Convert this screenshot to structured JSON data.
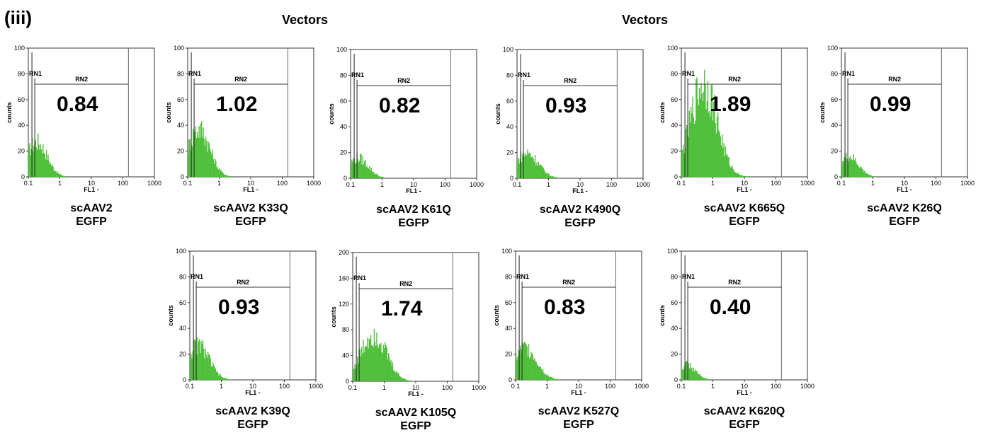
{
  "panel_label": "(iii)",
  "vectors_labels": [
    "Vectors",
    "Vectors"
  ],
  "chart_data": [
    {
      "type": "histogram",
      "ylabel": "counts",
      "xlabel": "FL1 -",
      "x_scale": "log",
      "xlim": [
        0.1,
        1000
      ],
      "ylim": [
        0,
        100
      ],
      "y_ticks": [
        "0",
        "20",
        "40",
        "60",
        "80",
        "100"
      ],
      "x_ticks": [
        "0.1",
        "1",
        "10",
        "100",
        "1000"
      ],
      "gate1": "RN1",
      "gate2": "RN2",
      "value": "0.84",
      "caption": [
        "scAAV2",
        "EGFP"
      ],
      "peak_x": 0.18,
      "peak_y": 35,
      "width": 0.32
    },
    {
      "type": "histogram",
      "ylabel": "counts",
      "xlabel": "FL1 -",
      "x_scale": "log",
      "xlim": [
        0.1,
        1000
      ],
      "ylim": [
        0,
        100
      ],
      "y_ticks": [
        "0",
        "20",
        "40",
        "60",
        "80",
        "100"
      ],
      "x_ticks": [
        "0.1",
        "1",
        "10",
        "100",
        "1000"
      ],
      "gate1": "RN1",
      "gate2": "RN2",
      "value": "1.02",
      "caption": [
        "scAAV2 K33Q",
        "EGFP"
      ],
      "peak_x": 0.22,
      "peak_y": 48,
      "width": 0.34
    },
    {
      "type": "histogram",
      "ylabel": "counts",
      "xlabel": "FL1 -",
      "x_scale": "log",
      "xlim": [
        0.1,
        1000
      ],
      "ylim": [
        0,
        100
      ],
      "y_ticks": [
        "0",
        "20",
        "40",
        "60",
        "80",
        "100"
      ],
      "x_ticks": [
        "0.1",
        "1",
        "10",
        "100",
        "1000"
      ],
      "gate1": "RN1",
      "gate2": "RN2",
      "value": "0.82",
      "caption": [
        "scAAV2 K61Q",
        "EGFP"
      ],
      "peak_x": 0.17,
      "peak_y": 20,
      "width": 0.32
    },
    {
      "type": "histogram",
      "ylabel": "counts",
      "xlabel": "FL1 -",
      "x_scale": "log",
      "xlim": [
        0.1,
        1000
      ],
      "ylim": [
        0,
        100
      ],
      "y_ticks": [
        "0",
        "20",
        "40",
        "60",
        "80",
        "100"
      ],
      "x_ticks": [
        "0.1",
        "1",
        "10",
        "100",
        "1000"
      ],
      "gate1": "RN1",
      "gate2": "RN2",
      "value": "0.93",
      "caption": [
        "scAAV2 K490Q",
        "EGFP"
      ],
      "peak_x": 0.2,
      "peak_y": 25,
      "width": 0.36
    },
    {
      "type": "histogram",
      "ylabel": "counts",
      "xlabel": "FL1 -",
      "x_scale": "log",
      "xlim": [
        0.1,
        1000
      ],
      "ylim": [
        0,
        100
      ],
      "y_ticks": [
        "0",
        "20",
        "40",
        "60",
        "80",
        "100"
      ],
      "x_ticks": [
        "0.1",
        "1",
        "10",
        "100",
        "1000"
      ],
      "gate1": "RN1",
      "gate2": "RN2",
      "value": "1.89",
      "caption": [
        "scAAV2 K665Q",
        "EGFP"
      ],
      "peak_x": 0.5,
      "peak_y": 93,
      "width": 0.42
    },
    {
      "type": "histogram",
      "ylabel": "counts",
      "xlabel": "FL1 -",
      "x_scale": "log",
      "xlim": [
        0.1,
        1000
      ],
      "ylim": [
        0,
        100
      ],
      "y_ticks": [
        "0",
        "20",
        "40",
        "60",
        "80",
        "100"
      ],
      "x_ticks": [
        "0.1",
        "1",
        "10",
        "100",
        "1000"
      ],
      "gate1": "RN1",
      "gate2": "RN2",
      "value": "0.99",
      "caption": [
        "scAAV2 K26Q",
        "EGFP"
      ],
      "peak_x": 0.17,
      "peak_y": 20,
      "width": 0.3
    },
    {
      "type": "histogram",
      "ylabel": "counts",
      "xlabel": "FL1 -",
      "x_scale": "log",
      "xlim": [
        0.1,
        1000
      ],
      "ylim": [
        0,
        100
      ],
      "y_ticks": [
        "0",
        "20",
        "40",
        "60",
        "80",
        "100"
      ],
      "x_ticks": [
        "0.1",
        "1",
        "10",
        "100",
        "1000"
      ],
      "gate1": "RN1",
      "gate2": "RN2",
      "value": "0.93",
      "caption": [
        "scAAV2 K39Q",
        "EGFP"
      ],
      "peak_x": 0.18,
      "peak_y": 35,
      "width": 0.34
    },
    {
      "type": "histogram",
      "ylabel": "counts",
      "xlabel": "FL1 -",
      "x_scale": "log",
      "xlim": [
        0.1,
        1000
      ],
      "ylim": [
        0,
        200
      ],
      "y_ticks": [
        "0",
        "40",
        "80",
        "120",
        "160",
        "200"
      ],
      "x_ticks": [
        "0.1",
        "1",
        "10",
        "100",
        "1000"
      ],
      "gate1": "RN1",
      "gate2": "RN2",
      "value": "1.74",
      "caption": [
        "scAAV2 K105Q",
        "EGFP"
      ],
      "peak_x": 0.45,
      "peak_y": 95,
      "width": 0.4
    },
    {
      "type": "histogram",
      "ylabel": "counts",
      "xlabel": "FL1 -",
      "x_scale": "log",
      "xlim": [
        0.1,
        1000
      ],
      "ylim": [
        0,
        100
      ],
      "y_ticks": [
        "0",
        "20",
        "40",
        "60",
        "80",
        "100"
      ],
      "x_ticks": [
        "0.1",
        "1",
        "10",
        "100",
        "1000"
      ],
      "gate1": "RN1",
      "gate2": "RN2",
      "value": "0.83",
      "caption": [
        "scAAV2 K527Q",
        "EGFP"
      ],
      "peak_x": 0.2,
      "peak_y": 32,
      "width": 0.36
    },
    {
      "type": "histogram",
      "ylabel": "counts",
      "xlabel": "FL1 -",
      "x_scale": "log",
      "xlim": [
        0.1,
        1000
      ],
      "ylim": [
        0,
        100
      ],
      "y_ticks": [
        "0",
        "20",
        "40",
        "60",
        "80",
        "100"
      ],
      "x_ticks": [
        "0.1",
        "1",
        "10",
        "100",
        "1000"
      ],
      "gate1": "RN1",
      "gate2": "RN2",
      "value": "0.40",
      "caption": [
        "scAAV2 K620Q",
        "EGFP"
      ],
      "peak_x": 0.14,
      "peak_y": 15,
      "width": 0.28
    }
  ]
}
